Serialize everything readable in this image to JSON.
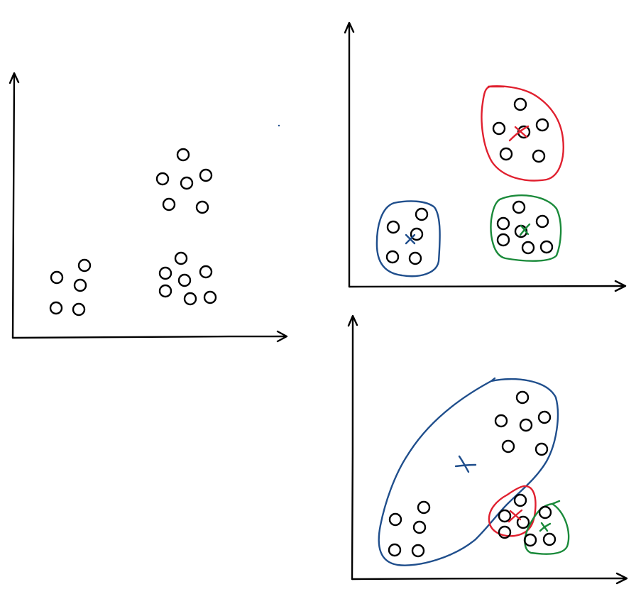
{
  "colors": {
    "ink": "#000000",
    "blue": "#1f4e8c",
    "red": "#e0202f",
    "green": "#1a8a3a"
  },
  "panels": [
    {
      "name": "raw-data-plot",
      "cluster_count": 3,
      "clusters": [
        {
          "name": "cluster-bottom-left",
          "points": 5,
          "outline": "none",
          "centroid": "none"
        },
        {
          "name": "cluster-top-middle",
          "points": 6,
          "outline": "none",
          "centroid": "none"
        },
        {
          "name": "cluster-bottom-middle",
          "points": 7,
          "outline": "none",
          "centroid": "none"
        }
      ]
    },
    {
      "name": "good-clustering-plot",
      "cluster_count": 3,
      "clusters": [
        {
          "name": "cluster-blue",
          "points": 5,
          "outline": "blue",
          "centroid": "blue"
        },
        {
          "name": "cluster-red",
          "points": 6,
          "outline": "red",
          "centroid": "red"
        },
        {
          "name": "cluster-green",
          "points": 7,
          "outline": "green",
          "centroid": "green"
        }
      ]
    },
    {
      "name": "bad-clustering-plot",
      "cluster_count": 3,
      "clusters": [
        {
          "name": "cluster-blue-merged",
          "points": 11,
          "outline": "blue",
          "centroid": "blue"
        },
        {
          "name": "cluster-red-small",
          "points": 4,
          "outline": "red",
          "centroid": "red"
        },
        {
          "name": "cluster-green-small",
          "points": 3,
          "outline": "green",
          "centroid": "green"
        }
      ]
    }
  ]
}
